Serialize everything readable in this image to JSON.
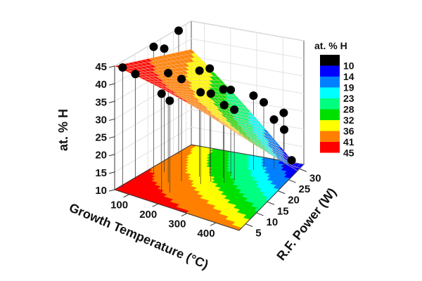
{
  "chart_data": {
    "type": "surface3d",
    "title": "",
    "xlabel": "Growth Temperature (°C)",
    "ylabel": "R.F. Power (W)",
    "zlabel": "at. % H",
    "xlim": [
      50,
      480
    ],
    "ylim": [
      2,
      32
    ],
    "zlim": [
      10,
      45
    ],
    "x_ticks": [
      "100",
      "200",
      "300",
      "400"
    ],
    "y_ticks": [
      "5",
      "10",
      "15",
      "20",
      "25",
      "30"
    ],
    "z_ticks": [
      "10",
      "15",
      "20",
      "25",
      "30",
      "35",
      "40",
      "45"
    ],
    "legend": {
      "title": "at. % H",
      "position": "right",
      "levels": [
        "10",
        "14",
        "19",
        "23",
        "28",
        "32",
        "36",
        "41",
        "45"
      ],
      "colors": [
        "#000000",
        "#0000ff",
        "#0080ff",
        "#00ffff",
        "#00ff80",
        "#00e000",
        "#ffff00",
        "#ff8000",
        "#ff0000"
      ]
    },
    "points": [
      {
        "x": 60,
        "y": 4,
        "z": 44
      },
      {
        "x": 60,
        "y": 9,
        "z": 40
      },
      {
        "x": 80,
        "y": 14,
        "z": 46
      },
      {
        "x": 100,
        "y": 16,
        "z": 45
      },
      {
        "x": 60,
        "y": 26,
        "z": 45
      },
      {
        "x": 150,
        "y": 12,
        "z": 41
      },
      {
        "x": 180,
        "y": 14,
        "z": 39
      },
      {
        "x": 170,
        "y": 7,
        "z": 38
      },
      {
        "x": 190,
        "y": 8,
        "z": 36
      },
      {
        "x": 210,
        "y": 18,
        "z": 40
      },
      {
        "x": 230,
        "y": 20,
        "z": 40
      },
      {
        "x": 240,
        "y": 15,
        "z": 36
      },
      {
        "x": 260,
        "y": 17,
        "z": 35
      },
      {
        "x": 280,
        "y": 20,
        "z": 35
      },
      {
        "x": 290,
        "y": 22,
        "z": 34
      },
      {
        "x": 300,
        "y": 18,
        "z": 32
      },
      {
        "x": 320,
        "y": 20,
        "z": 30
      },
      {
        "x": 340,
        "y": 26,
        "z": 31
      },
      {
        "x": 370,
        "y": 27,
        "z": 29
      },
      {
        "x": 400,
        "y": 28,
        "z": 24
      },
      {
        "x": 420,
        "y": 30,
        "z": 25
      },
      {
        "x": 430,
        "y": 29,
        "z": 21
      },
      {
        "x": 450,
        "y": 30,
        "z": 12
      }
    ]
  }
}
